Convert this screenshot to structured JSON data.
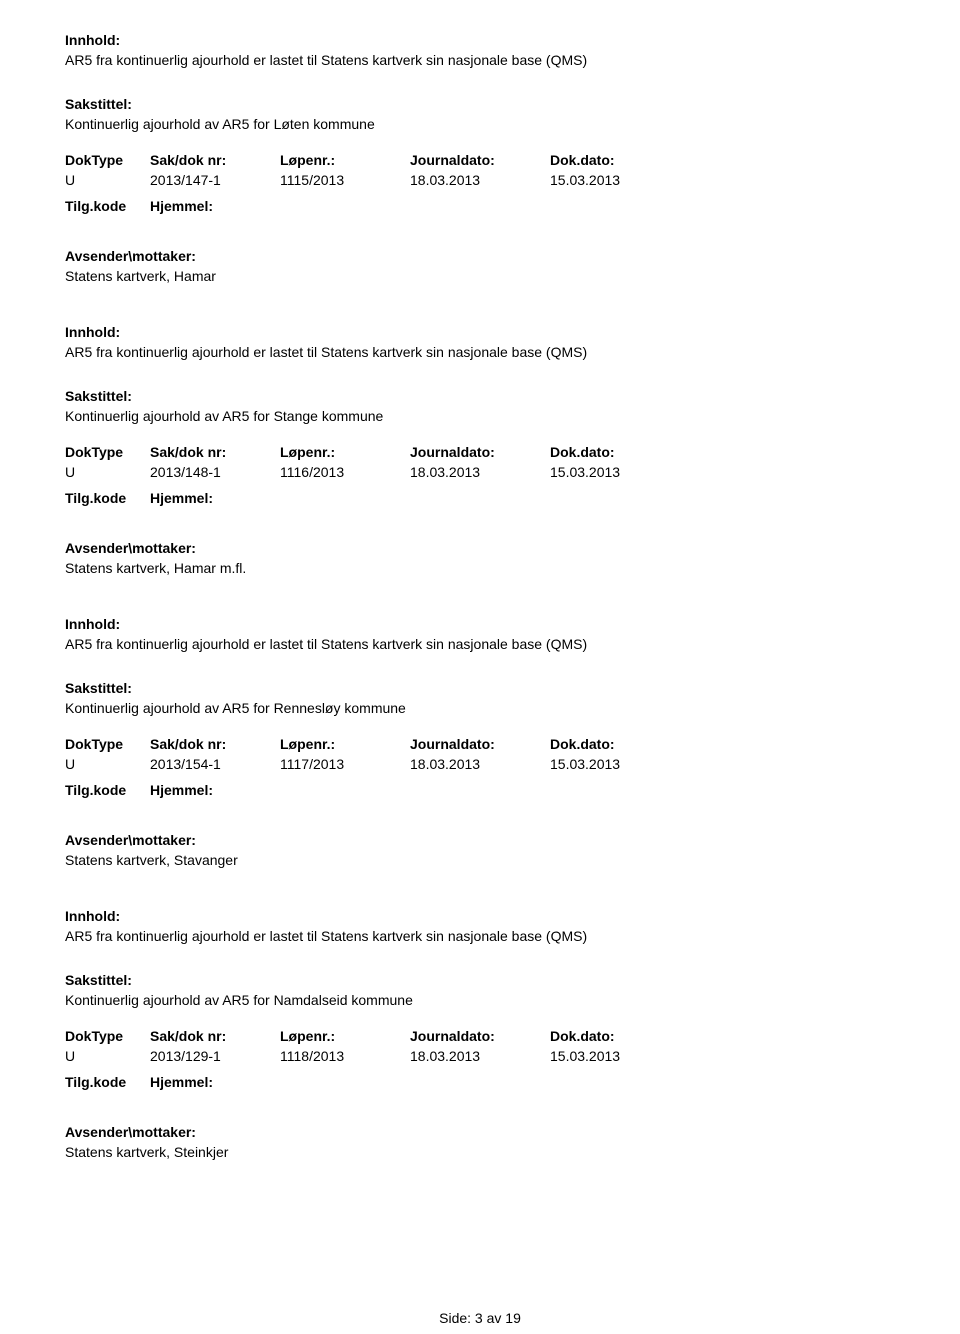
{
  "labels": {
    "innhold": "Innhold:",
    "sakstittel": "Sakstittel:",
    "doktype": "DokType",
    "sakdoknr": "Sak/dok nr:",
    "lopenr": "Løpenr.:",
    "journaldato": "Journaldato:",
    "dokdato": "Dok.dato:",
    "tilgkode": "Tilg.kode",
    "hjemmel": "Hjemmel:",
    "avsender": "Avsender\\mottaker:"
  },
  "records": [
    {
      "innhold": "AR5 fra kontinuerlig ajourhold er lastet til Statens kartverk sin nasjonale base (QMS)",
      "sakstittel": "Kontinuerlig ajourhold av AR5 for Løten kommune",
      "doktype": "U",
      "sakdoknr": "2013/147-1",
      "lopenr": "1115/2013",
      "journaldato": "18.03.2013",
      "dokdato": "15.03.2013",
      "avsender": "Statens kartverk, Hamar"
    },
    {
      "innhold": "AR5 fra kontinuerlig ajourhold er lastet til Statens kartverk sin nasjonale base (QMS)",
      "sakstittel": "Kontinuerlig ajourhold av AR5 for Stange kommune",
      "doktype": "U",
      "sakdoknr": "2013/148-1",
      "lopenr": "1116/2013",
      "journaldato": "18.03.2013",
      "dokdato": "15.03.2013",
      "avsender": "Statens kartverk, Hamar m.fl."
    },
    {
      "innhold": "AR5 fra kontinuerlig ajourhold er lastet til Statens kartverk sin nasjonale base (QMS)",
      "sakstittel": "Kontinuerlig ajourhold av AR5 for Rennesløy kommune",
      "doktype": "U",
      "sakdoknr": "2013/154-1",
      "lopenr": "1117/2013",
      "journaldato": "18.03.2013",
      "dokdato": "15.03.2013",
      "avsender": "Statens kartverk, Stavanger"
    },
    {
      "innhold": "AR5 fra kontinuerlig ajourhold er lastet til Statens kartverk sin nasjonale base (QMS)",
      "sakstittel": "Kontinuerlig ajourhold av AR5 for Namdalseid kommune",
      "doktype": "U",
      "sakdoknr": "2013/129-1",
      "lopenr": "1118/2013",
      "journaldato": "18.03.2013",
      "dokdato": "15.03.2013",
      "avsender": "Statens kartverk, Steinkjer"
    }
  ],
  "footer": {
    "text": "Side: 3 av 19"
  },
  "style": {
    "text_color": "#000000",
    "background_color": "#ffffff",
    "font_size_pt": 11,
    "font_family": "Arial"
  }
}
